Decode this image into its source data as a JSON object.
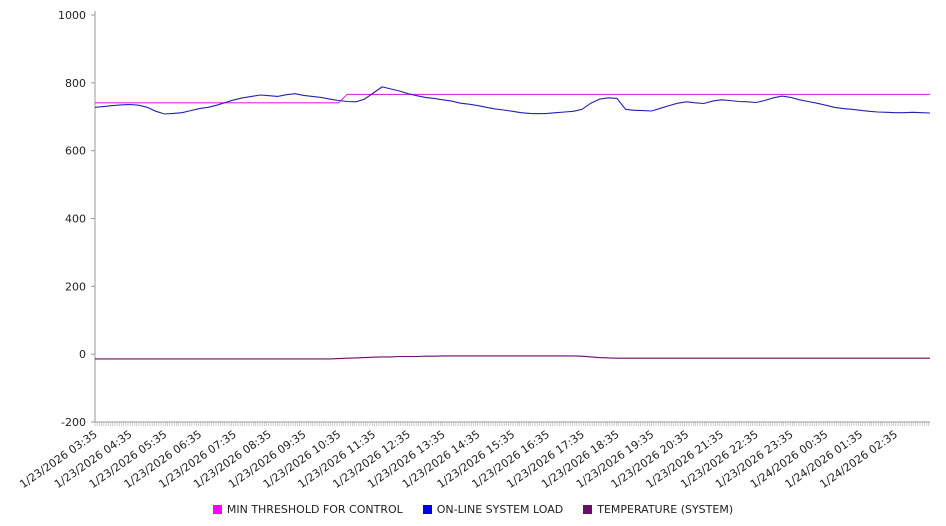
{
  "chart_data": {
    "type": "line",
    "title": "",
    "xlabel": "",
    "ylabel": "",
    "ylim": [
      -200,
      1000
    ],
    "yticks": [
      -200,
      0,
      200,
      400,
      600,
      800,
      1000
    ],
    "grid": false,
    "legend_position": "bottom",
    "points_per_hour": 4,
    "x_labels": [
      "1/23/2026 03:35",
      "1/23/2026 04:35",
      "1/23/2026 05:35",
      "1/23/2026 06:35",
      "1/23/2026 07:35",
      "1/23/2026 08:35",
      "1/23/2026 09:35",
      "1/23/2026 10:35",
      "1/23/2026 11:35",
      "1/23/2026 12:35",
      "1/23/2026 13:35",
      "1/23/2026 14:35",
      "1/23/2026 15:35",
      "1/23/2026 16:35",
      "1/23/2026 17:35",
      "1/23/2026 18:35",
      "1/23/2026 19:35",
      "1/23/2026 20:35",
      "1/23/2026 21:35",
      "1/23/2026 22:35",
      "1/23/2026 23:35",
      "1/24/2026 00:35",
      "1/24/2026 01:35",
      "1/24/2026 02:35"
    ],
    "series": [
      {
        "name": "MIN THRESHOLD FOR CONTROL",
        "color": "#df2cdf",
        "swatch_color": "#ff00ff",
        "values": [
          741,
          741,
          741,
          741,
          741,
          741,
          741,
          741,
          741,
          741,
          741,
          741,
          741,
          741,
          741,
          741,
          741,
          741,
          741,
          741,
          741,
          741,
          741,
          741,
          741,
          741,
          741,
          741,
          741,
          766,
          766,
          766,
          766,
          766,
          766,
          766,
          766,
          766,
          766,
          766,
          766,
          766,
          766,
          766,
          766,
          766,
          766,
          766,
          766,
          766,
          766,
          766,
          766,
          766,
          766,
          766,
          766,
          766,
          766,
          766,
          766,
          766,
          766,
          766,
          766,
          766,
          766,
          766,
          766,
          766,
          766,
          766,
          766,
          766,
          766,
          766,
          766,
          766,
          766,
          766,
          766,
          766,
          766,
          766,
          766,
          766,
          766,
          766,
          766,
          766,
          766,
          766,
          766,
          766,
          766,
          766,
          766
        ]
      },
      {
        "name": "ON-LINE SYSTEM LOAD",
        "color": "#2222b4",
        "swatch_color": "#0000ee",
        "values": [
          728,
          730,
          733,
          735,
          736,
          734,
          728,
          716,
          708,
          710,
          712,
          718,
          724,
          728,
          734,
          742,
          750,
          756,
          760,
          764,
          762,
          760,
          765,
          768,
          763,
          760,
          757,
          752,
          748,
          745,
          744,
          752,
          770,
          788,
          782,
          776,
          768,
          762,
          757,
          754,
          750,
          746,
          740,
          737,
          733,
          728,
          723,
          720,
          716,
          712,
          710,
          709,
          710,
          712,
          714,
          716,
          722,
          740,
          752,
          756,
          754,
          722,
          719,
          718,
          717,
          725,
          733,
          740,
          744,
          741,
          739,
          746,
          750,
          748,
          745,
          744,
          742,
          748,
          756,
          761,
          757,
          750,
          745,
          740,
          734,
          728,
          724,
          722,
          719,
          716,
          714,
          713,
          712,
          712,
          713,
          712,
          711
        ]
      },
      {
        "name": "TEMPERATURE (SYSTEM)",
        "color": "#6a0d6a",
        "swatch_color": "#6a0d6a",
        "values": [
          -14,
          -14,
          -14,
          -14,
          -14,
          -14,
          -14,
          -14,
          -14,
          -14,
          -14,
          -14,
          -14,
          -14,
          -14,
          -14,
          -14,
          -14,
          -14,
          -14,
          -14,
          -14,
          -14,
          -14,
          -14,
          -14,
          -14,
          -14,
          -13,
          -12,
          -11,
          -10,
          -9,
          -8,
          -8,
          -7,
          -7,
          -7,
          -6,
          -6,
          -5,
          -5,
          -5,
          -5,
          -5,
          -5,
          -5,
          -5,
          -5,
          -5,
          -5,
          -5,
          -5,
          -5,
          -5,
          -5,
          -6,
          -8,
          -10,
          -11,
          -12,
          -12,
          -12,
          -12,
          -12,
          -12,
          -12,
          -12,
          -12,
          -12,
          -12,
          -12,
          -12,
          -12,
          -12,
          -12,
          -12,
          -12,
          -12,
          -12,
          -12,
          -12,
          -12,
          -12,
          -12,
          -12,
          -12,
          -12,
          -12,
          -12,
          -12,
          -12,
          -12,
          -12,
          -12,
          -12,
          -12
        ]
      }
    ]
  }
}
